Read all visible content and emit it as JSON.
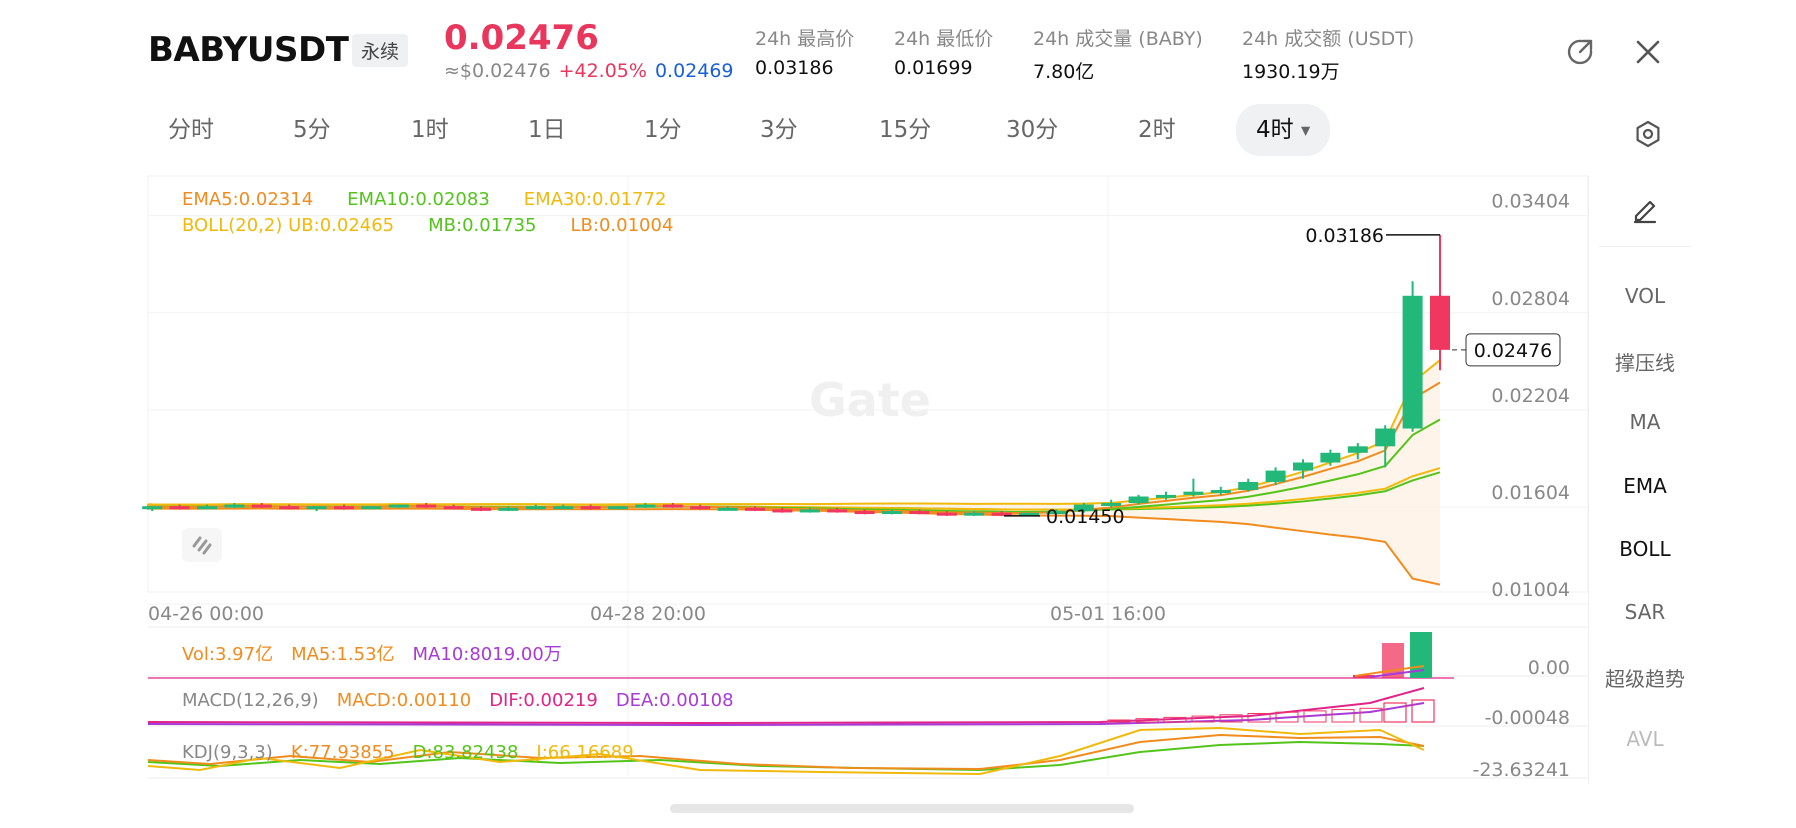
{
  "header": {
    "symbol": "BABYUSDT",
    "contract_type": "永续",
    "last_price": "0.02476",
    "usd_price": "≈$0.02476",
    "change_pct": "+42.05%",
    "mark_price": "0.02469",
    "stats": [
      {
        "label": "24h 最高价",
        "value": "0.03186"
      },
      {
        "label": "24h 最低价",
        "value": "0.01699"
      },
      {
        "label": "24h 成交量 (BABY)",
        "value": "7.80亿"
      },
      {
        "label": "24h 成交额 (USDT)",
        "value": "1930.19万"
      }
    ],
    "share_icon": "share-icon",
    "close_icon": "close-icon"
  },
  "tabs": [
    {
      "label": "分时"
    },
    {
      "label": "5分"
    },
    {
      "label": "1时"
    },
    {
      "label": "1日"
    },
    {
      "label": "1分"
    },
    {
      "label": "3分"
    },
    {
      "label": "15分"
    },
    {
      "label": "30分"
    },
    {
      "label": "2时"
    },
    {
      "label": "4时",
      "active": true
    }
  ],
  "settings_icon": "hexagon-settings-icon",
  "sidebar": {
    "edit_icon": "pencil-icon",
    "items": [
      {
        "label": "VOL",
        "state": "normal"
      },
      {
        "label": "撑压线",
        "state": "normal"
      },
      {
        "label": "MA",
        "state": "normal"
      },
      {
        "label": "EMA",
        "state": "active"
      },
      {
        "label": "BOLL",
        "state": "active"
      },
      {
        "label": "SAR",
        "state": "normal"
      },
      {
        "label": "超级趋势",
        "state": "normal"
      },
      {
        "label": "AVL",
        "state": "disabled"
      }
    ]
  },
  "indicators": {
    "ema": [
      {
        "text": "EMA5:0.02314",
        "color": "#f08c1e"
      },
      {
        "text": "EMA10:0.02083",
        "color": "#52c41a"
      },
      {
        "text": "EMA30:0.01772",
        "color": "#f0b90b"
      }
    ],
    "boll": [
      {
        "text": "BOLL(20,2) UB:0.02465",
        "color": "#f0b90b"
      },
      {
        "text": "MB:0.01735",
        "color": "#52c41a"
      },
      {
        "text": "LB:0.01004",
        "color": "#f08c1e"
      }
    ],
    "vol": [
      {
        "text": "Vol:3.97亿",
        "color": "#f08c1e"
      },
      {
        "text": "MA5:1.53亿",
        "color": "#f08c1e"
      },
      {
        "text": "MA10:8019.00万",
        "color": "#a83ad6"
      }
    ],
    "macd": [
      {
        "text": "MACD(12,26,9)",
        "color": "#888888"
      },
      {
        "text": "MACD:0.00110",
        "color": "#f08c1e"
      },
      {
        "text": "DIF:0.00219",
        "color": "#e0248a"
      },
      {
        "text": "DEA:0.00108",
        "color": "#a83ad6"
      }
    ],
    "kdj": [
      {
        "text": "KDJ(9,3,3)",
        "color": "#888888"
      },
      {
        "text": "K:77.93855",
        "color": "#f08c1e"
      },
      {
        "text": "D:83.82438",
        "color": "#52c41a"
      },
      {
        "text": "J:66.16689",
        "color": "#f0b90b"
      }
    ]
  },
  "price_marker": "0.02476",
  "watermark": "Gate",
  "colors": {
    "up": "#22b87a",
    "down": "#f0375f",
    "ema5": "#f08c1e",
    "ema10": "#52c41a",
    "ema30": "#f0b90b",
    "accent_red": "#e8365d",
    "accent_blue": "#1a5fd6"
  },
  "chart_data": {
    "type": "candlestick",
    "interval": "4时",
    "x_tick_labels": [
      "04-26 00:00",
      "04-28 20:00",
      "05-01 16:00"
    ],
    "y_tick_labels": [
      "0.03404",
      "0.02804",
      "0.02204",
      "0.01604",
      "0.01004"
    ],
    "ylim": [
      0.0098,
      0.0355
    ],
    "high_annotation": "0.03186",
    "low_annotation": "0.01450",
    "sub_y_labels": {
      "vol": "0.00",
      "macd": "-0.00048",
      "kdj": "-23.63241"
    },
    "candles": [
      {
        "o": 0.0152,
        "h": 0.0154,
        "l": 0.015,
        "c": 0.0151
      },
      {
        "o": 0.0151,
        "h": 0.0153,
        "l": 0.0149,
        "c": 0.0152
      },
      {
        "o": 0.0152,
        "h": 0.0153,
        "l": 0.015,
        "c": 0.0151
      },
      {
        "o": 0.0151,
        "h": 0.0152,
        "l": 0.0149,
        "c": 0.015
      },
      {
        "o": 0.015,
        "h": 0.0152,
        "l": 0.0149,
        "c": 0.0151
      },
      {
        "o": 0.0151,
        "h": 0.0152,
        "l": 0.0149,
        "c": 0.015
      },
      {
        "o": 0.015,
        "h": 0.0151,
        "l": 0.0148,
        "c": 0.0151
      },
      {
        "o": 0.0151,
        "h": 0.0152,
        "l": 0.0149,
        "c": 0.015
      },
      {
        "o": 0.015,
        "h": 0.0152,
        "l": 0.0149,
        "c": 0.0151
      },
      {
        "o": 0.0151,
        "h": 0.0153,
        "l": 0.015,
        "c": 0.0152
      },
      {
        "o": 0.0152,
        "h": 0.0153,
        "l": 0.015,
        "c": 0.0151
      },
      {
        "o": 0.0151,
        "h": 0.0152,
        "l": 0.015,
        "c": 0.015
      },
      {
        "o": 0.015,
        "h": 0.0151,
        "l": 0.0148,
        "c": 0.0151
      },
      {
        "o": 0.0151,
        "h": 0.0152,
        "l": 0.0149,
        "c": 0.015
      },
      {
        "o": 0.015,
        "h": 0.0151,
        "l": 0.0149,
        "c": 0.0151
      },
      {
        "o": 0.0151,
        "h": 0.0152,
        "l": 0.015,
        "c": 0.0152
      },
      {
        "o": 0.0152,
        "h": 0.0153,
        "l": 0.015,
        "c": 0.0151
      },
      {
        "o": 0.0151,
        "h": 0.0152,
        "l": 0.0149,
        "c": 0.015
      },
      {
        "o": 0.015,
        "h": 0.0151,
        "l": 0.0148,
        "c": 0.0149
      },
      {
        "o": 0.0149,
        "h": 0.0151,
        "l": 0.0148,
        "c": 0.015
      },
      {
        "o": 0.015,
        "h": 0.0152,
        "l": 0.0149,
        "c": 0.0151
      },
      {
        "o": 0.0151,
        "h": 0.0152,
        "l": 0.015,
        "c": 0.0151
      },
      {
        "o": 0.0151,
        "h": 0.0152,
        "l": 0.0149,
        "c": 0.015
      },
      {
        "o": 0.015,
        "h": 0.0151,
        "l": 0.0149,
        "c": 0.0151
      },
      {
        "o": 0.0151,
        "h": 0.0153,
        "l": 0.015,
        "c": 0.0152
      },
      {
        "o": 0.0152,
        "h": 0.0153,
        "l": 0.015,
        "c": 0.0151
      },
      {
        "o": 0.0151,
        "h": 0.0152,
        "l": 0.0149,
        "c": 0.015
      },
      {
        "o": 0.015,
        "h": 0.0151,
        "l": 0.0149,
        "c": 0.015
      },
      {
        "o": 0.015,
        "h": 0.0151,
        "l": 0.0148,
        "c": 0.0149
      },
      {
        "o": 0.0149,
        "h": 0.015,
        "l": 0.0147,
        "c": 0.0148
      },
      {
        "o": 0.0148,
        "h": 0.015,
        "l": 0.0147,
        "c": 0.0149
      },
      {
        "o": 0.0149,
        "h": 0.015,
        "l": 0.0147,
        "c": 0.0148
      },
      {
        "o": 0.0148,
        "h": 0.0149,
        "l": 0.0146,
        "c": 0.0147
      },
      {
        "o": 0.0147,
        "h": 0.0149,
        "l": 0.0146,
        "c": 0.0148
      },
      {
        "o": 0.0148,
        "h": 0.0149,
        "l": 0.0146,
        "c": 0.0147
      },
      {
        "o": 0.0147,
        "h": 0.0148,
        "l": 0.0145,
        "c": 0.0146
      },
      {
        "o": 0.0146,
        "h": 0.0148,
        "l": 0.0145,
        "c": 0.0147
      },
      {
        "o": 0.0147,
        "h": 0.0148,
        "l": 0.0145,
        "c": 0.0146
      },
      {
        "o": 0.0146,
        "h": 0.0147,
        "l": 0.0145,
        "c": 0.0147
      },
      {
        "o": 0.0147,
        "h": 0.0149,
        "l": 0.0146,
        "c": 0.0148
      },
      {
        "o": 0.0148,
        "h": 0.0153,
        "l": 0.0147,
        "c": 0.0152
      },
      {
        "o": 0.0152,
        "h": 0.0155,
        "l": 0.015,
        "c": 0.0153
      },
      {
        "o": 0.0153,
        "h": 0.0158,
        "l": 0.0152,
        "c": 0.0157
      },
      {
        "o": 0.0157,
        "h": 0.016,
        "l": 0.0155,
        "c": 0.0158
      },
      {
        "o": 0.0158,
        "h": 0.0168,
        "l": 0.0157,
        "c": 0.016
      },
      {
        "o": 0.016,
        "h": 0.0163,
        "l": 0.0158,
        "c": 0.0161
      },
      {
        "o": 0.0161,
        "h": 0.0168,
        "l": 0.016,
        "c": 0.0166
      },
      {
        "o": 0.0166,
        "h": 0.0175,
        "l": 0.0164,
        "c": 0.0173
      },
      {
        "o": 0.0173,
        "h": 0.018,
        "l": 0.0168,
        "c": 0.0178
      },
      {
        "o": 0.0178,
        "h": 0.0186,
        "l": 0.0176,
        "c": 0.0184
      },
      {
        "o": 0.0184,
        "h": 0.019,
        "l": 0.018,
        "c": 0.0188
      },
      {
        "o": 0.0188,
        "h": 0.0201,
        "l": 0.0175,
        "c": 0.0199
      },
      {
        "o": 0.0199,
        "h": 0.029,
        "l": 0.0197,
        "c": 0.0281
      },
      {
        "o": 0.0281,
        "h": 0.03186,
        "l": 0.0235,
        "c": 0.02476
      }
    ]
  }
}
